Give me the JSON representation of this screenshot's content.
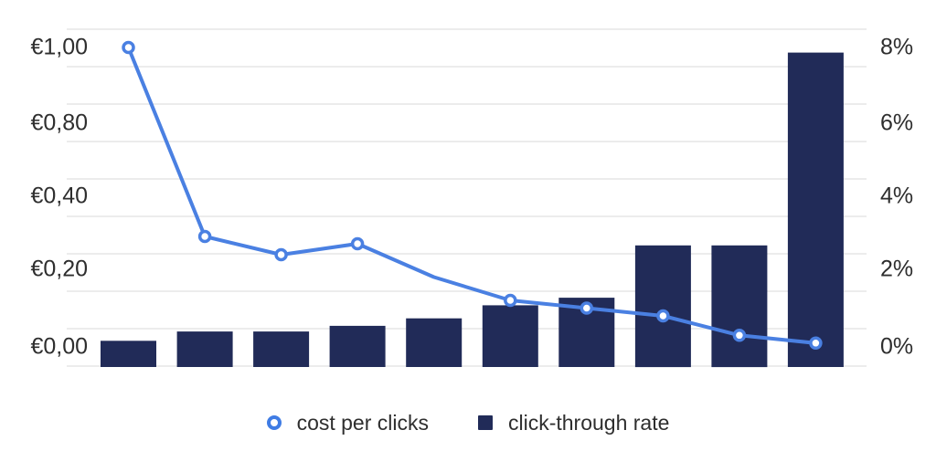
{
  "chart_data": {
    "type": "combo_bar_line",
    "title": "",
    "grid": true,
    "legend_position": "bottom",
    "x_axis": {
      "tick_labels_visible": false,
      "num_points": 10
    },
    "left_axis": {
      "unit": "EUR",
      "tick_labels": [
        "€1,00",
        "€0,80",
        "€0,40",
        "€0,20",
        "€0,00"
      ],
      "tick_values": [
        1.0,
        0.8,
        0.4,
        0.2,
        0.0
      ]
    },
    "right_axis": {
      "unit": "percent",
      "tick_labels": [
        "8%",
        "6%",
        "4%",
        "2%",
        "0%"
      ],
      "tick_values": [
        8,
        6,
        4,
        2,
        0
      ]
    },
    "series": [
      {
        "name": "cost per clicks",
        "type": "line",
        "axis": "left",
        "color": "#4a80e2",
        "marker": "open-circle",
        "values_eur": [
          1.0,
          0.29,
          0.24,
          0.27,
          0.18,
          0.12,
          0.1,
          0.08,
          0.03,
          0.01
        ],
        "marker_visible": [
          true,
          true,
          true,
          true,
          false,
          true,
          true,
          true,
          true,
          true
        ]
      },
      {
        "name": "click-through rate",
        "type": "bar",
        "axis": "right",
        "color": "#212b58",
        "values_pct": [
          0.7,
          0.95,
          0.95,
          1.1,
          1.3,
          1.65,
          1.85,
          3.25,
          3.25,
          8.4
        ]
      }
    ]
  },
  "colors": {
    "line": "#4a80e2",
    "bar": "#212b58",
    "grid": "#ececec",
    "text": "#2e2e2e",
    "background": "#ffffff"
  }
}
